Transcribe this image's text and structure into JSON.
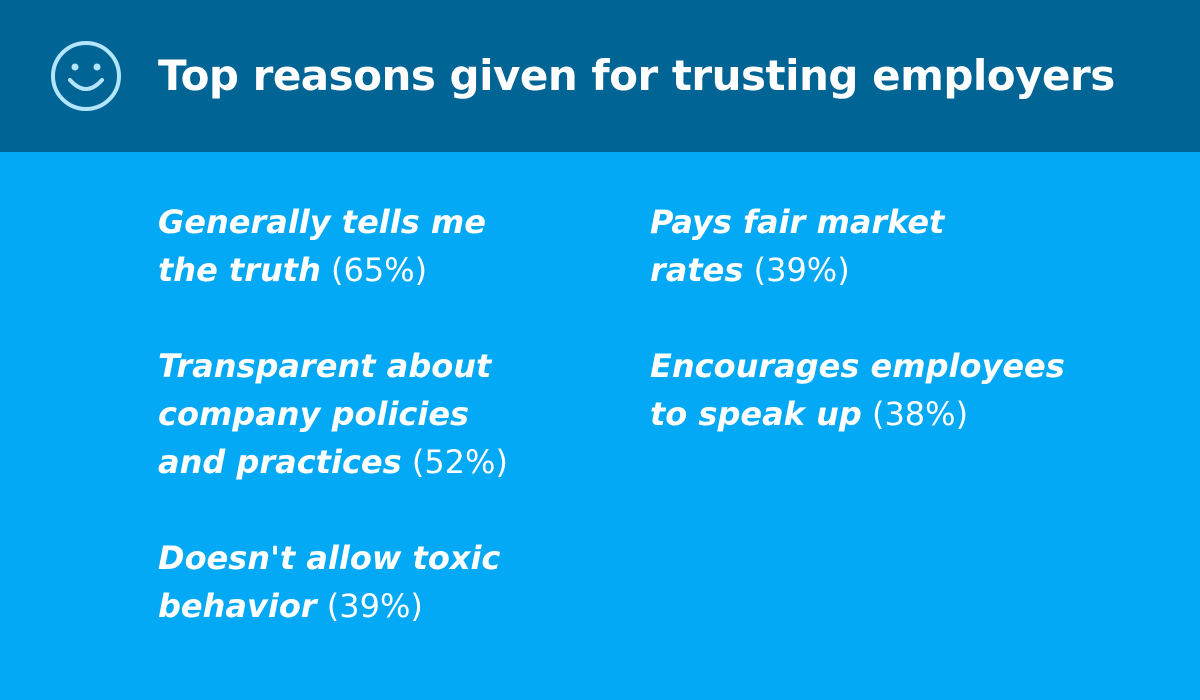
{
  "header": {
    "title": "Top reasons given for trusting employers",
    "icon": "smiley-face-icon",
    "background_color": "#006494"
  },
  "colors": {
    "body_background": "#03a9f4",
    "text": "#ffffff",
    "icon_stroke": "#b3e5fc"
  },
  "reasons": {
    "left": [
      {
        "lines": [
          "Generally tells me",
          "the truth"
        ],
        "pct": "(65%)"
      },
      {
        "lines": [
          "Transparent about",
          "company policies",
          "and practices"
        ],
        "pct": "(52%)"
      },
      {
        "lines": [
          "Doesn't allow toxic",
          "behavior"
        ],
        "pct": "(39%)"
      }
    ],
    "right": [
      {
        "lines": [
          "Pays fair market",
          "rates"
        ],
        "pct": "(39%)"
      },
      {
        "lines": [
          "Encourages employees",
          "to speak up"
        ],
        "pct": "(38%)"
      }
    ]
  }
}
